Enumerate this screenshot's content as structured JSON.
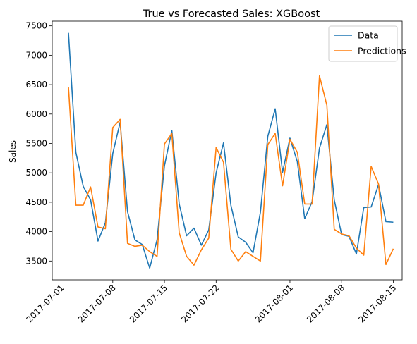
{
  "chart_data": {
    "type": "line",
    "title": "True vs Forecasted Sales: XGBoost",
    "xlabel": "",
    "ylabel": "Sales",
    "x": [
      "2017-07-02",
      "2017-07-03",
      "2017-07-04",
      "2017-07-05",
      "2017-07-06",
      "2017-07-07",
      "2017-07-08",
      "2017-07-09",
      "2017-07-10",
      "2017-07-11",
      "2017-07-12",
      "2017-07-13",
      "2017-07-14",
      "2017-07-15",
      "2017-07-16",
      "2017-07-17",
      "2017-07-18",
      "2017-07-19",
      "2017-07-20",
      "2017-07-21",
      "2017-07-22",
      "2017-07-23",
      "2017-07-24",
      "2017-07-25",
      "2017-07-26",
      "2017-07-27",
      "2017-07-28",
      "2017-07-29",
      "2017-07-30",
      "2017-07-31",
      "2017-08-01",
      "2017-08-02",
      "2017-08-03",
      "2017-08-04",
      "2017-08-05",
      "2017-08-06",
      "2017-08-07",
      "2017-08-08",
      "2017-08-09",
      "2017-08-10",
      "2017-08-11",
      "2017-08-12",
      "2017-08-13",
      "2017-08-14",
      "2017-08-15"
    ],
    "series": [
      {
        "name": "Data",
        "color": "#1f77b4",
        "values": [
          7380,
          5350,
          4770,
          4540,
          3840,
          4150,
          5330,
          5860,
          4340,
          3860,
          3780,
          3380,
          3860,
          5120,
          5720,
          4470,
          3930,
          4060,
          3770,
          4030,
          5000,
          5510,
          4450,
          3910,
          3820,
          3640,
          4330,
          5620,
          6090,
          5010,
          5590,
          5190,
          4220,
          4510,
          5420,
          5820,
          4540,
          3950,
          3920,
          3620,
          4410,
          4420,
          4800,
          4170,
          4160
        ]
      },
      {
        "name": "Predictions",
        "color": "#ff7f0e",
        "values": [
          6460,
          4450,
          4450,
          4760,
          4080,
          4050,
          5770,
          5910,
          3800,
          3750,
          3770,
          3660,
          3580,
          5490,
          5670,
          3980,
          3580,
          3430,
          3690,
          3890,
          5430,
          5180,
          3700,
          3500,
          3660,
          3580,
          3500,
          5480,
          5670,
          4780,
          5570,
          5350,
          4470,
          4470,
          6650,
          6150,
          4040,
          3960,
          3930,
          3720,
          3600,
          5110,
          4810,
          3440,
          3710
        ]
      }
    ],
    "x_ticks": [
      "2017-07-01",
      "2017-07-08",
      "2017-07-15",
      "2017-07-22",
      "2017-08-01",
      "2017-08-08",
      "2017-08-15"
    ],
    "y_ticks": [
      3500,
      4000,
      4500,
      5000,
      5500,
      6000,
      6500,
      7000,
      7500
    ],
    "xlim": [
      "2017-06-29.8",
      "2017-08-16.2"
    ],
    "ylim": [
      3180,
      7580
    ],
    "grid": false,
    "legend": "top-right"
  }
}
